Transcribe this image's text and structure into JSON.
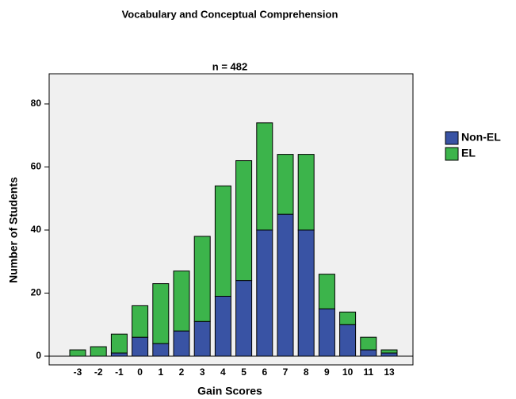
{
  "chart_data": {
    "type": "stacked_bar",
    "title": "Vocabulary and Conceptual Comprehension",
    "subtitle": "n = 482",
    "x_label": "Gain Scores",
    "y_label": "Number of Students",
    "categories": [
      "-3",
      "-2",
      "-1",
      "0",
      "1",
      "2",
      "3",
      "4",
      "5",
      "6",
      "7",
      "8",
      "9",
      "10",
      "11",
      "13"
    ],
    "series": [
      {
        "name": "Non-EL",
        "color": "#3953a4",
        "values": [
          0,
          0,
          1,
          6,
          4,
          8,
          11,
          19,
          24,
          40,
          45,
          40,
          15,
          10,
          2,
          1
        ]
      },
      {
        "name": "EL",
        "color": "#3cb44b",
        "values": [
          2,
          3,
          6,
          10,
          19,
          19,
          27,
          35,
          38,
          34,
          19,
          24,
          11,
          4,
          4,
          1
        ]
      }
    ],
    "ylim": [
      0,
      80
    ],
    "yticks": [
      0,
      20,
      40,
      60,
      80
    ],
    "legend": "right"
  }
}
